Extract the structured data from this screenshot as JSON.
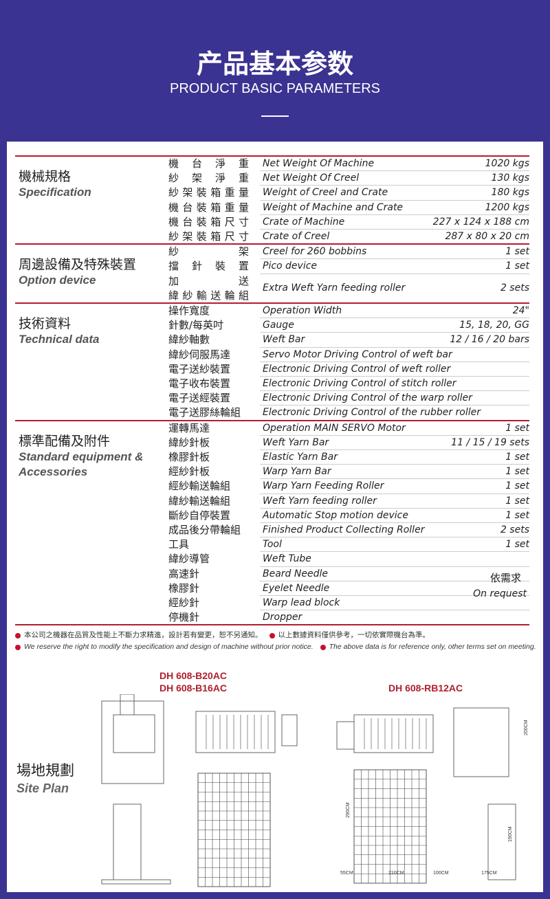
{
  "header": {
    "title": "产品基本参数",
    "subtitle": "PRODUCT BASIC PARAMETERS"
  },
  "sections": [
    {
      "title_zh": "機械規格",
      "title_en": "Specification",
      "rows": [
        {
          "label": "機台淨重",
          "desc": "Net Weight Of Machine",
          "value": "1020 kgs"
        },
        {
          "label": "紗架淨重",
          "desc": "Net Weight Of Creel",
          "value": "130 kgs"
        },
        {
          "label": "紗架裝箱重量",
          "desc": "Weight of Creel and Crate",
          "value": "180 kgs"
        },
        {
          "label": "機台裝箱重量",
          "desc": "Weight of Machine and Crate",
          "value": "1200 kgs"
        },
        {
          "label": "機台裝箱尺寸",
          "desc": "Crate of Machine",
          "value": "227 x 124 x 188 cm"
        },
        {
          "label": "紗架裝箱尺寸",
          "desc": "Crate of Creel",
          "value": "287 x 80 x 20 cm"
        }
      ]
    },
    {
      "title_zh": "周邊設備及特殊裝置",
      "title_en": "Option device",
      "rows": [
        {
          "label": "紗架",
          "desc": "Creel for 260 bobbins",
          "value": "1 set"
        },
        {
          "label": "擋針裝置",
          "desc": "Pico device",
          "value": "1 set"
        },
        {
          "label": [
            "加送",
            "緯紗輸送輪組"
          ],
          "desc": "Extra Weft Yarn feeding roller",
          "value": "2 sets"
        }
      ]
    },
    {
      "title_zh": "技術資料",
      "title_en": "Technical data",
      "rows": [
        {
          "label": "操作寬度",
          "desc": "Operation Width",
          "value": "24\""
        },
        {
          "label": "針數/每英吋",
          "desc": "Gauge",
          "value": "15, 18, 20, GG"
        },
        {
          "label": "緯紗軸數",
          "desc": "Weft Bar",
          "value": "12 / 16 / 20 bars"
        },
        {
          "label": "緯紗伺服馬達",
          "desc": "Servo Motor Driving Control of weft bar"
        },
        {
          "label": "電子送紗裝置",
          "desc": "Electronic Driving Control of weft roller"
        },
        {
          "label": "電子收布裝置",
          "desc": "Electronic Driving Control of stitch roller"
        },
        {
          "label": "電子送經裝置",
          "desc": "Electronic Driving Control of the warp roller"
        },
        {
          "label": "電子送膠絲輪組",
          "desc": "Electronic Driving Control of the rubber roller"
        }
      ]
    },
    {
      "title_zh": "標準配備及附件",
      "title_en": "Standard equipment & Accessories",
      "rows": [
        {
          "label": "運轉馬達",
          "desc": "Operation MAIN SERVO Motor",
          "value": "1 set"
        },
        {
          "label": "緯紗針板",
          "desc": "Weft Yarn Bar",
          "value": "11 / 15 / 19 sets"
        },
        {
          "label": "橡膠針板",
          "desc": "Elastic Yarn Bar",
          "value": "1 set"
        },
        {
          "label": "經紗針板",
          "desc": "Warp Yarn Bar",
          "value": "1 set"
        },
        {
          "label": "經紗輸送輪組",
          "desc": "Warp Yarn Feeding Roller",
          "value": "1 set"
        },
        {
          "label": "緯紗輸送輪組",
          "desc": "Weft Yarn feeding roller",
          "value": "1 set"
        },
        {
          "label": "斷紗自停裝置",
          "desc": "Automatic Stop motion device",
          "value": "1 set"
        },
        {
          "label": "成品後分帶輪組",
          "desc": "Finished Product Collecting Roller",
          "value": "2 sets"
        },
        {
          "label": "工具",
          "desc": "Tool",
          "value": "1 set"
        }
      ],
      "request_rows": [
        {
          "label": "緯紗導管",
          "desc": "Weft Tube"
        },
        {
          "label": "高速針",
          "desc": "Beard Needle"
        },
        {
          "label": "橡膠針",
          "desc": "Eyelet Needle"
        },
        {
          "label": "經紗針",
          "desc": "Warp lead block"
        },
        {
          "label": "停機針",
          "desc": "Dropper"
        }
      ],
      "request_zh": "依需求",
      "request_en": "On request"
    }
  ],
  "notes": {
    "zh": [
      "本公司之機器在品質及性能上不斷力求精進，設計若有變更，恕不另通知。",
      "以上數據資料僅供參考，一切依實際機台為準。"
    ],
    "en": [
      "We reserve the right to modify the specification and design of machine without prior notice.",
      "The above data is for reference only, other terms set on meeting."
    ]
  },
  "site_plan": {
    "title_zh": "場地規劃",
    "title_en": "Site Plan",
    "models_left": [
      "DH 608-B20AC",
      "DH 608-B16AC"
    ],
    "model_right": "DH 608-RB12AC",
    "dims_right": [
      "55CM",
      "210CM",
      "100CM",
      "175CM",
      "290CM",
      "200CM",
      "190CM"
    ]
  }
}
